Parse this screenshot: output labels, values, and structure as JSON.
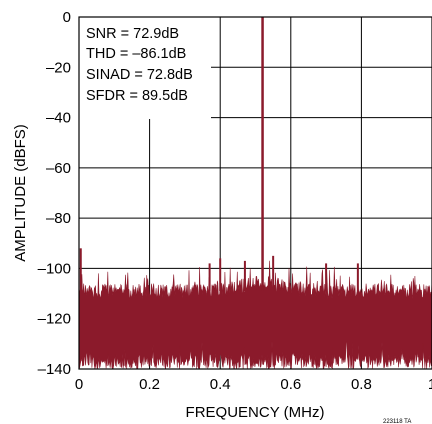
{
  "chart_data": {
    "type": "line",
    "title": "",
    "xlabel": "FREQUENCY (MHz)",
    "ylabel": "AMPLITUDE (dBFS)",
    "xlim": [
      0,
      1
    ],
    "ylim": [
      -140,
      0
    ],
    "x_ticks": [
      "0",
      "0.2",
      "0.4",
      "0.6",
      "0.8",
      "1"
    ],
    "y_ticks": [
      "0",
      "–20",
      "–40",
      "–60",
      "–80",
      "–100",
      "–120",
      "–140"
    ],
    "x_tick_values": [
      0,
      0.2,
      0.4,
      0.6,
      0.8,
      1
    ],
    "y_tick_values": [
      0,
      -20,
      -40,
      -60,
      -80,
      -100,
      -120,
      -140
    ],
    "grid": true,
    "series_color": "#8b1a2b",
    "annotations": [
      "SNR = 72.9dB",
      "THD = –86.1dB",
      "SINAD = 72.8dB",
      "SFDR = 89.5dB"
    ],
    "figure_id": "223118 TA",
    "fundamental": {
      "frequency_mhz": 0.52,
      "amplitude_dbfs": 0
    },
    "noise_floor_dbfs": -109,
    "spurs": [
      {
        "frequency_mhz": 0.005,
        "amplitude_dbfs": -92
      },
      {
        "frequency_mhz": 0.37,
        "amplitude_dbfs": -98
      },
      {
        "frequency_mhz": 0.4,
        "amplitude_dbfs": -96
      },
      {
        "frequency_mhz": 0.47,
        "amplitude_dbfs": -97
      },
      {
        "frequency_mhz": 0.55,
        "amplitude_dbfs": -95
      },
      {
        "frequency_mhz": 0.7,
        "amplitude_dbfs": -98
      },
      {
        "frequency_mhz": 0.79,
        "amplitude_dbfs": -98
      }
    ]
  }
}
